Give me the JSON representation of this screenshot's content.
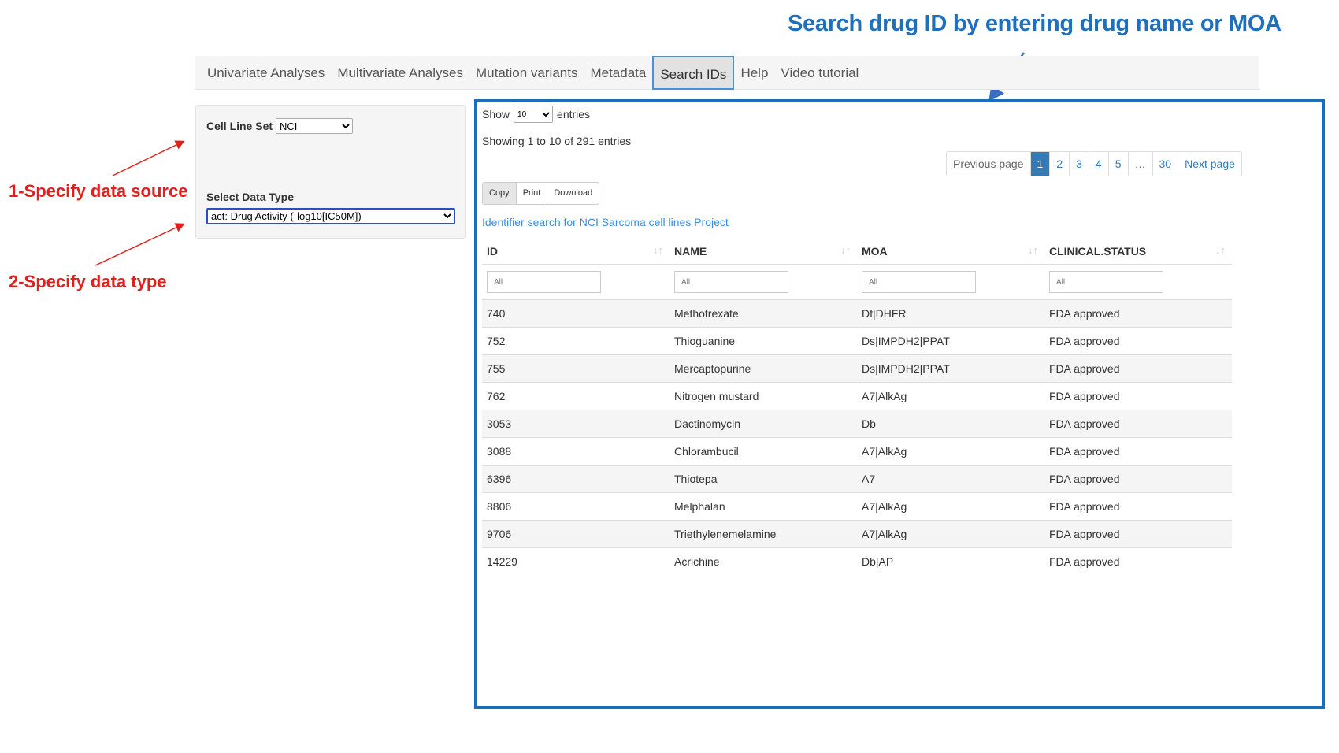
{
  "annotations": {
    "title": "Search drug ID by entering drug  name or MOA",
    "label1": "1-Specify data source",
    "label2": "2-Specify data type",
    "title_color": "#1f6fbf",
    "label_color": "#e0201c"
  },
  "nav": {
    "tabs": [
      "Univariate Analyses",
      "Multivariate Analyses",
      "Mutation variants",
      "Metadata",
      "Search IDs",
      "Help",
      "Video tutorial"
    ],
    "active": "Search IDs"
  },
  "left": {
    "cell_line_label": "Cell Line Set",
    "cell_line_value": "NCI",
    "data_type_label": "Select Data Type",
    "data_type_value": "act: Drug Activity (-log10[IC50M])"
  },
  "main": {
    "show": "Show",
    "show_value": "10",
    "entries": "entries",
    "info": "Showing 1 to 10 of 291 entries",
    "pagination": [
      "Previous page",
      "1",
      "2",
      "3",
      "4",
      "5",
      "…",
      "30",
      "Next page"
    ],
    "buttons": [
      "Copy",
      "Print",
      "Download"
    ],
    "link": "Identifier search for NCI Sarcoma cell lines Project",
    "columns": [
      "ID",
      "NAME",
      "MOA",
      "CLINICAL.STATUS"
    ],
    "filter_placeholder": "All",
    "rows": [
      [
        "740",
        "Methotrexate",
        "Df|DHFR",
        "FDA approved"
      ],
      [
        "752",
        "Thioguanine",
        "Ds|IMPDH2|PPAT",
        "FDA approved"
      ],
      [
        "755",
        "Mercaptopurine",
        "Ds|IMPDH2|PPAT",
        "FDA approved"
      ],
      [
        "762",
        "Nitrogen mustard",
        "A7|AlkAg",
        "FDA approved"
      ],
      [
        "3053",
        "Dactinomycin",
        "Db",
        "FDA approved"
      ],
      [
        "3088",
        "Chlorambucil",
        "A7|AlkAg",
        "FDA approved"
      ],
      [
        "6396",
        "Thiotepa",
        "A7",
        "FDA approved"
      ],
      [
        "8806",
        "Melphalan",
        "A7|AlkAg",
        "FDA approved"
      ],
      [
        "9706",
        "Triethylenemelamine",
        "A7|AlkAg",
        "FDA approved"
      ],
      [
        "14229",
        "Acrichine",
        "Db|AP",
        "FDA approved"
      ]
    ]
  }
}
